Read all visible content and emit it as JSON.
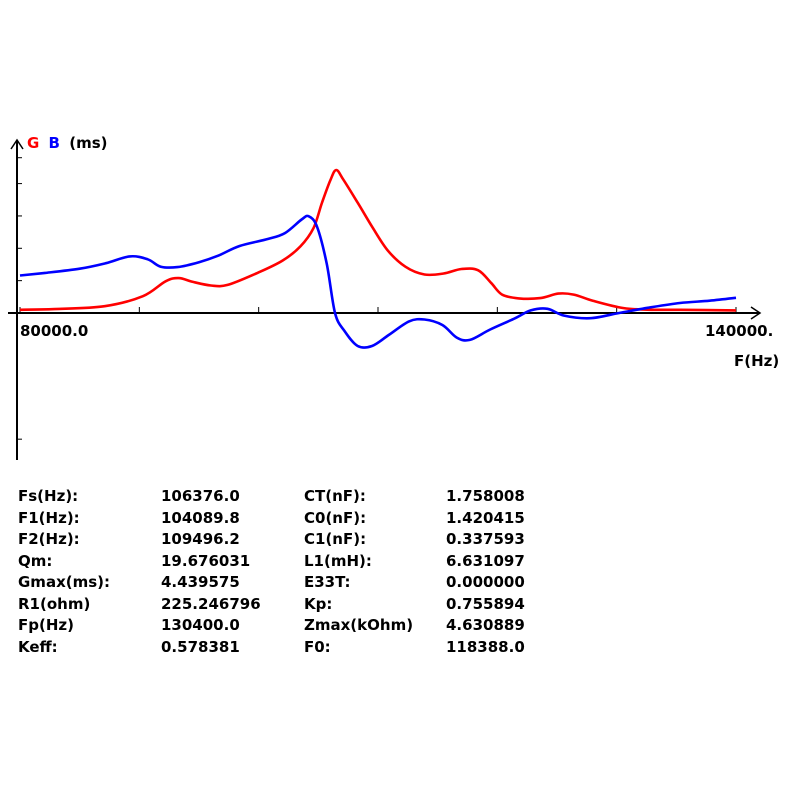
{
  "chart_data": {
    "type": "line",
    "y_legend": {
      "g": "G",
      "b": "B",
      "unit": "(ms)"
    },
    "xlabel": "F(Hz)",
    "x_tick_labels": [
      "80000.0",
      "140000."
    ],
    "xlim": [
      80000,
      140000
    ],
    "grid": false,
    "series": [
      {
        "name": "G",
        "color": "#ff0000",
        "points": [
          [
            80000,
            0.1
          ],
          [
            82900,
            0.12
          ],
          [
            87100,
            0.21
          ],
          [
            90300,
            0.52
          ],
          [
            92200,
            0.98
          ],
          [
            93300,
            1.08
          ],
          [
            94500,
            0.96
          ],
          [
            96000,
            0.85
          ],
          [
            97400,
            0.87
          ],
          [
            99900,
            1.24
          ],
          [
            102000,
            1.62
          ],
          [
            103500,
            2.06
          ],
          [
            104600,
            2.63
          ],
          [
            105300,
            3.4
          ],
          [
            106000,
            4.1
          ],
          [
            106500,
            4.42
          ],
          [
            107100,
            4.12
          ],
          [
            108300,
            3.41
          ],
          [
            109500,
            2.67
          ],
          [
            110800,
            1.94
          ],
          [
            112300,
            1.43
          ],
          [
            113900,
            1.19
          ],
          [
            115500,
            1.22
          ],
          [
            117000,
            1.36
          ],
          [
            118400,
            1.32
          ],
          [
            119500,
            0.92
          ],
          [
            120400,
            0.57
          ],
          [
            121800,
            0.45
          ],
          [
            123600,
            0.46
          ],
          [
            125100,
            0.6
          ],
          [
            126400,
            0.57
          ],
          [
            128000,
            0.38
          ],
          [
            130600,
            0.15
          ],
          [
            133100,
            0.1
          ],
          [
            135300,
            0.1
          ],
          [
            140000,
            0.08
          ]
        ]
      },
      {
        "name": "B",
        "color": "#0000ff",
        "points": [
          [
            80000,
            1.16
          ],
          [
            82100,
            1.24
          ],
          [
            85000,
            1.37
          ],
          [
            87200,
            1.54
          ],
          [
            89200,
            1.75
          ],
          [
            90700,
            1.66
          ],
          [
            91800,
            1.43
          ],
          [
            93200,
            1.42
          ],
          [
            95000,
            1.57
          ],
          [
            96600,
            1.77
          ],
          [
            98400,
            2.07
          ],
          [
            100800,
            2.29
          ],
          [
            102200,
            2.47
          ],
          [
            103600,
            2.89
          ],
          [
            104200,
            2.99
          ],
          [
            104900,
            2.66
          ],
          [
            105700,
            1.53
          ],
          [
            106400,
            0.0
          ],
          [
            107200,
            -0.56
          ],
          [
            108300,
            -1.02
          ],
          [
            109500,
            -1.02
          ],
          [
            110900,
            -0.68
          ],
          [
            112600,
            -0.26
          ],
          [
            113900,
            -0.2
          ],
          [
            115400,
            -0.37
          ],
          [
            116600,
            -0.76
          ],
          [
            117700,
            -0.83
          ],
          [
            119400,
            -0.51
          ],
          [
            121500,
            -0.16
          ],
          [
            122800,
            0.08
          ],
          [
            124200,
            0.13
          ],
          [
            125600,
            -0.08
          ],
          [
            127800,
            -0.16
          ],
          [
            130200,
            0.0
          ],
          [
            132600,
            0.16
          ],
          [
            135300,
            0.31
          ],
          [
            137800,
            0.38
          ],
          [
            140000,
            0.47
          ]
        ]
      }
    ],
    "ylim": [
      -3.9,
      4.8
    ]
  },
  "params": [
    {
      "l1": "Fs(Hz):",
      "v1": "106376.0",
      "l2": "CT(nF):",
      "v2": "1.758008"
    },
    {
      "l1": "F1(Hz):",
      "v1": "104089.8",
      "l2": "C0(nF):",
      "v2": "1.420415"
    },
    {
      "l1": "F2(Hz):",
      "v1": "109496.2",
      "l2": "C1(nF):",
      "v2": "0.337593"
    },
    {
      "l1": "Qm:",
      "v1": "19.676031",
      "l2": "L1(mH):",
      "v2": "6.631097"
    },
    {
      "l1": "Gmax(ms):",
      "v1": "4.439575",
      "l2": "E33T:",
      "v2": "0.000000"
    },
    {
      "l1": "R1(ohm)",
      "v1": "225.246796",
      "l2": "Kp:",
      "v2": "0.755894"
    },
    {
      "l1": "Fp(Hz)",
      "v1": "130400.0",
      "l2": "Zmax(kOhm)",
      "v2": "4.630889"
    },
    {
      "l1": "Keff:",
      "v1": "0.578381",
      "l2": "F0:",
      "v2": "118388.0"
    }
  ]
}
